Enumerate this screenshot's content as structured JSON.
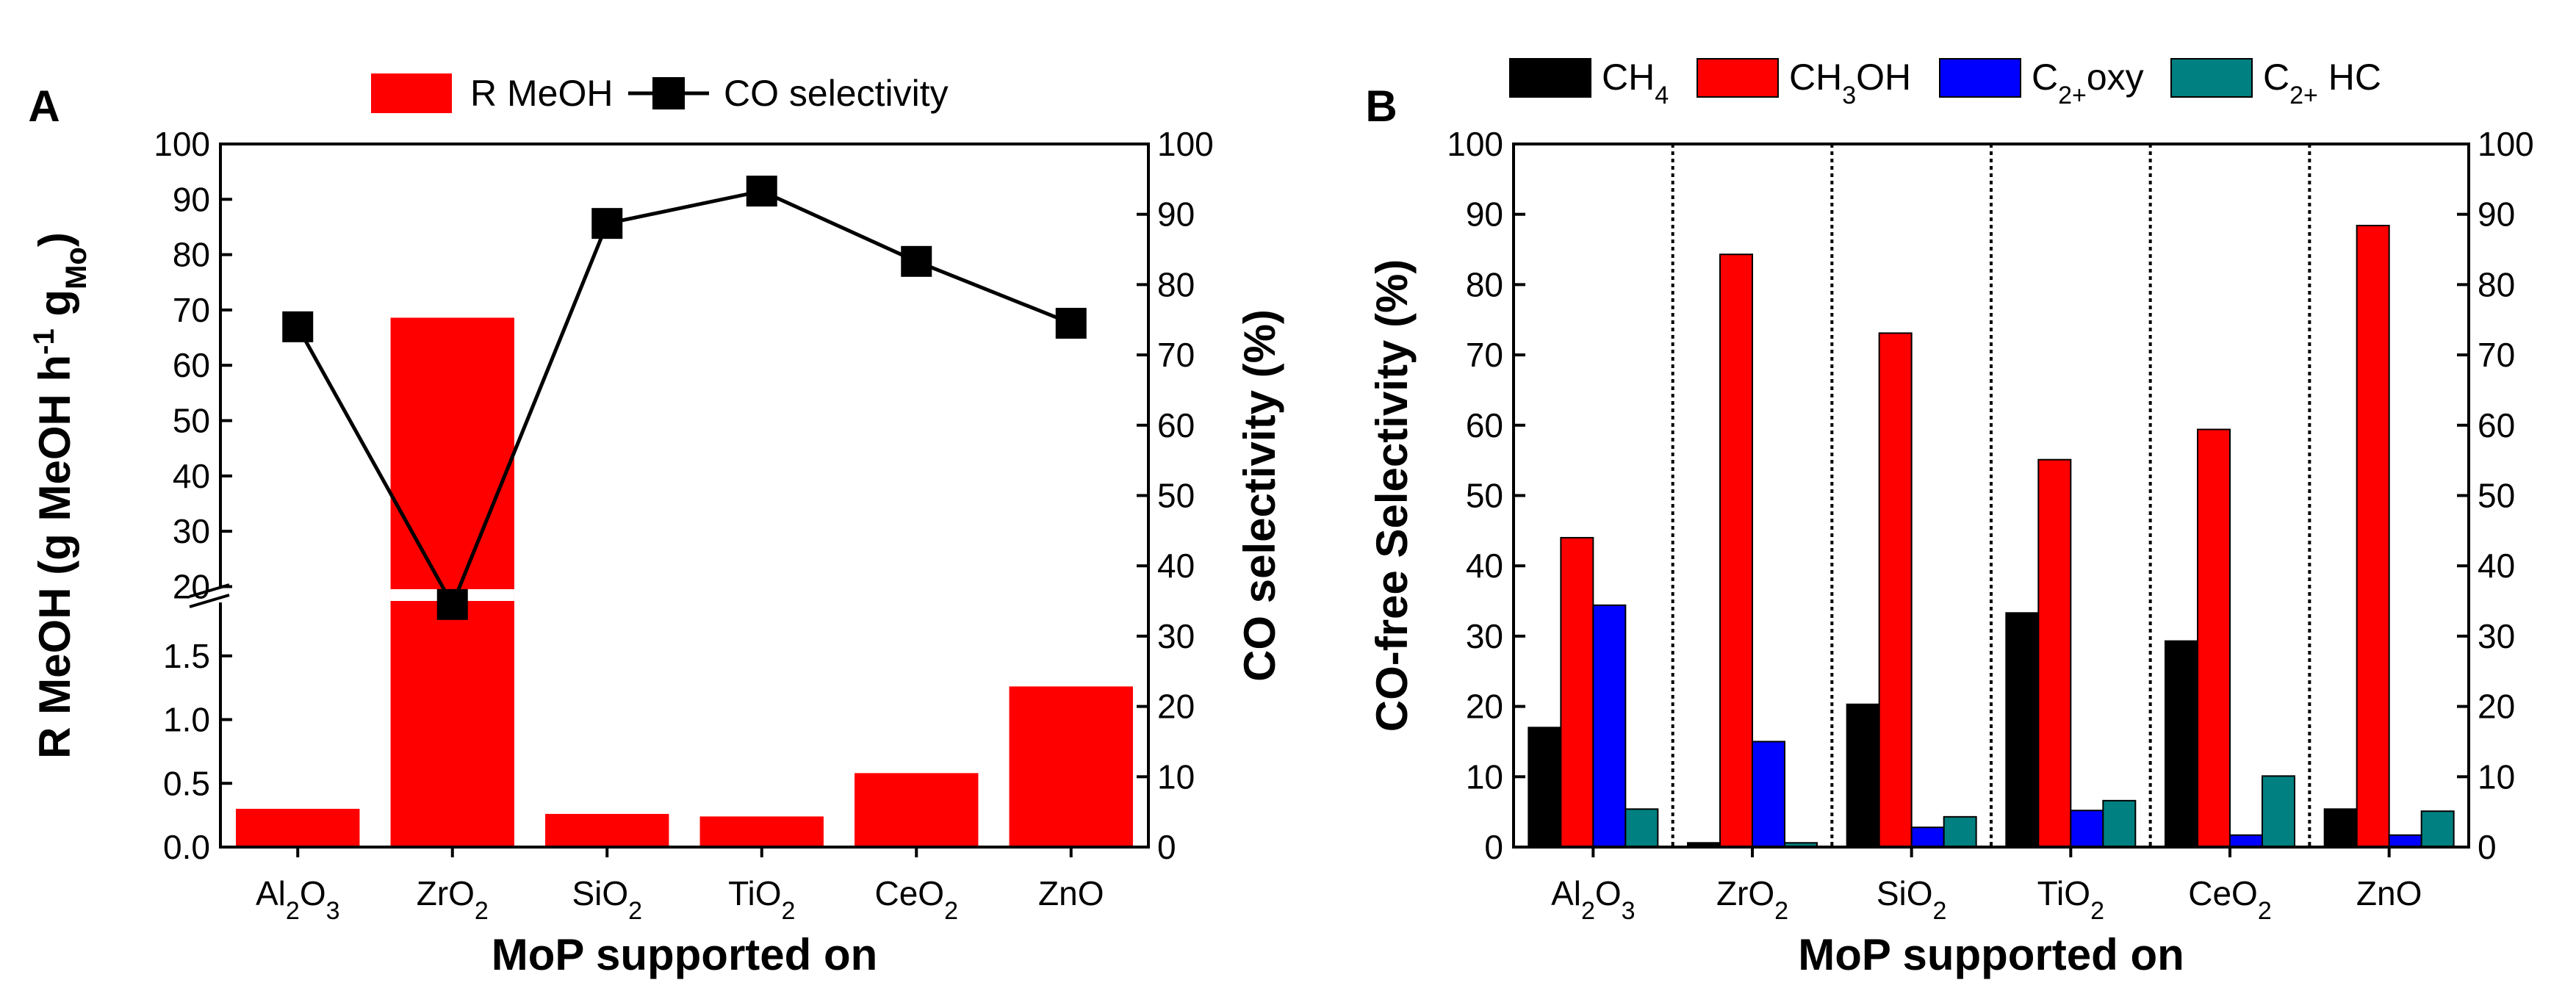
{
  "chart_data": [
    {
      "panel": "A",
      "type": "bar+line",
      "xlabel": "MoP supported on",
      "ylabel_left": "R MeOH (g MeOH h⁻¹ g₋Mo₋)",
      "ylabel_left_parts": {
        "main": "R MeOH (g MeOH h",
        "sup1": "-1",
        "g": " g",
        "sub": "Mo",
        "close": ")"
      },
      "ylabel_right": "CO selectivity (%)",
      "categories": [
        {
          "base": "Al",
          "s1": "2",
          "mid": "O",
          "s2": "3"
        },
        {
          "base": "Zr",
          "s1": "",
          "mid": "O",
          "s2": "2"
        },
        {
          "base": "Si",
          "s1": "",
          "mid": "O",
          "s2": "2"
        },
        {
          "base": "Ti",
          "s1": "",
          "mid": "O",
          "s2": "2"
        },
        {
          "base": "Ce",
          "s1": "",
          "mid": "O",
          "s2": "2"
        },
        {
          "base": "Zn",
          "s1": "",
          "mid": "O",
          "s2": ""
        }
      ],
      "category_names": [
        "Al2O3",
        "ZrO2",
        "SiO2",
        "TiO2",
        "CeO2",
        "ZnO"
      ],
      "series": [
        {
          "name": "R MeOH",
          "kind": "bar",
          "color": "#ff0000",
          "values": [
            0.3,
            68.6,
            0.26,
            0.24,
            0.58,
            1.26
          ]
        },
        {
          "name": "CO selectivity",
          "kind": "line",
          "color": "#000000",
          "axis": "right",
          "values": [
            74,
            34.5,
            88.7,
            93.3,
            83.3,
            74.5
          ]
        }
      ],
      "left_axis_broken": {
        "lower_range": [
          0,
          2.0
        ],
        "upper_range": [
          19,
          100
        ],
        "lower_ticks": [
          "0.0",
          "0.5",
          "1.0",
          "1.5"
        ],
        "upper_ticks": [
          "20",
          "30",
          "40",
          "50",
          "60",
          "70",
          "80",
          "90",
          "100"
        ]
      },
      "right_ylim": [
        0,
        100
      ],
      "right_ticks": [
        "0",
        "10",
        "20",
        "30",
        "40",
        "50",
        "60",
        "70",
        "80",
        "90",
        "100"
      ],
      "legend": {
        "bar_label": "R MeOH",
        "line_label": "CO selectivity",
        "position": "top"
      }
    },
    {
      "panel": "B",
      "type": "bar",
      "xlabel": "MoP supported on",
      "ylabel": "CO-free Selectivity (%)",
      "ylim": [
        0,
        100
      ],
      "ticks": [
        "0",
        "10",
        "20",
        "30",
        "40",
        "50",
        "60",
        "70",
        "80",
        "90",
        "100"
      ],
      "categories": [
        {
          "base": "Al",
          "s1": "2",
          "mid": "O",
          "s2": "3"
        },
        {
          "base": "Zr",
          "s1": "",
          "mid": "O",
          "s2": "2"
        },
        {
          "base": "Si",
          "s1": "",
          "mid": "O",
          "s2": "2"
        },
        {
          "base": "Ti",
          "s1": "",
          "mid": "O",
          "s2": "2"
        },
        {
          "base": "Ce",
          "s1": "",
          "mid": "O",
          "s2": "2"
        },
        {
          "base": "Zn",
          "s1": "",
          "mid": "O",
          "s2": ""
        }
      ],
      "category_names": [
        "Al2O3",
        "ZrO2",
        "SiO2",
        "TiO2",
        "CeO2",
        "ZnO"
      ],
      "series": [
        {
          "name": "CH4",
          "legend": {
            "a": "CH",
            "sub": "4",
            "b": ""
          },
          "color": "#000000",
          "values": [
            17,
            0.6,
            20.3,
            33.3,
            29.3,
            5.4
          ]
        },
        {
          "name": "CH3OH",
          "legend": {
            "a": "CH",
            "sub": "3",
            "b": "OH"
          },
          "color": "#ff0000",
          "values": [
            44,
            84.3,
            73.1,
            55.1,
            59.4,
            88.4
          ]
        },
        {
          "name": "C2+oxy",
          "legend": {
            "a": "C",
            "sub": "2+",
            "b": "oxy"
          },
          "color": "#0000ff",
          "values": [
            34.4,
            15,
            2.8,
            5.2,
            1.7,
            1.7
          ]
        },
        {
          "name": "C2+ HC",
          "legend": {
            "a": "C",
            "sub": "2+",
            "b": " HC"
          },
          "color": "#008080",
          "values": [
            5.4,
            0.6,
            4.3,
            6.6,
            10.1,
            5.1
          ]
        }
      ],
      "legend_position": "top"
    }
  ]
}
